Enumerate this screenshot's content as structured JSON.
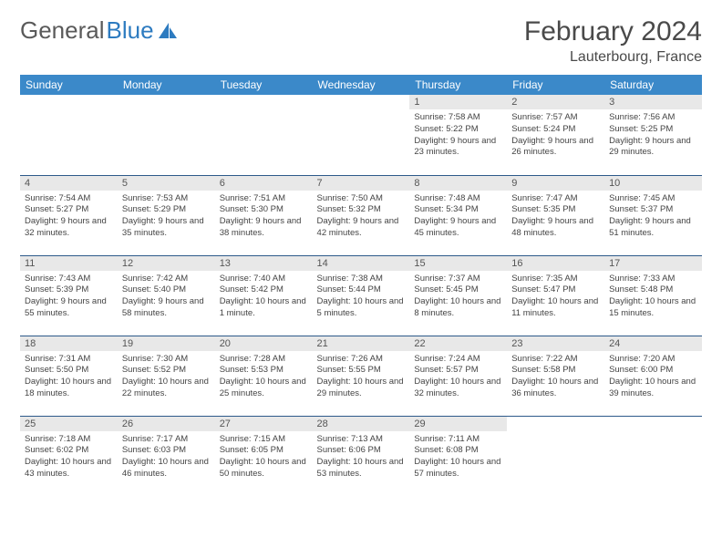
{
  "logo": {
    "part1": "General",
    "part2": "Blue"
  },
  "title": "February 2024",
  "location": "Lauterbourg, France",
  "colors": {
    "header_bg": "#3b89c9",
    "header_text": "#ffffff",
    "daynum_bg": "#e8e8e8",
    "row_border": "#2d5a8a",
    "logo_blue": "#2d7bc0",
    "text_gray": "#4a4a4a"
  },
  "day_headers": [
    "Sunday",
    "Monday",
    "Tuesday",
    "Wednesday",
    "Thursday",
    "Friday",
    "Saturday"
  ],
  "weeks": [
    [
      {
        "n": "",
        "sr": "",
        "ss": "",
        "dl": ""
      },
      {
        "n": "",
        "sr": "",
        "ss": "",
        "dl": ""
      },
      {
        "n": "",
        "sr": "",
        "ss": "",
        "dl": ""
      },
      {
        "n": "",
        "sr": "",
        "ss": "",
        "dl": ""
      },
      {
        "n": "1",
        "sr": "Sunrise: 7:58 AM",
        "ss": "Sunset: 5:22 PM",
        "dl": "Daylight: 9 hours and 23 minutes."
      },
      {
        "n": "2",
        "sr": "Sunrise: 7:57 AM",
        "ss": "Sunset: 5:24 PM",
        "dl": "Daylight: 9 hours and 26 minutes."
      },
      {
        "n": "3",
        "sr": "Sunrise: 7:56 AM",
        "ss": "Sunset: 5:25 PM",
        "dl": "Daylight: 9 hours and 29 minutes."
      }
    ],
    [
      {
        "n": "4",
        "sr": "Sunrise: 7:54 AM",
        "ss": "Sunset: 5:27 PM",
        "dl": "Daylight: 9 hours and 32 minutes."
      },
      {
        "n": "5",
        "sr": "Sunrise: 7:53 AM",
        "ss": "Sunset: 5:29 PM",
        "dl": "Daylight: 9 hours and 35 minutes."
      },
      {
        "n": "6",
        "sr": "Sunrise: 7:51 AM",
        "ss": "Sunset: 5:30 PM",
        "dl": "Daylight: 9 hours and 38 minutes."
      },
      {
        "n": "7",
        "sr": "Sunrise: 7:50 AM",
        "ss": "Sunset: 5:32 PM",
        "dl": "Daylight: 9 hours and 42 minutes."
      },
      {
        "n": "8",
        "sr": "Sunrise: 7:48 AM",
        "ss": "Sunset: 5:34 PM",
        "dl": "Daylight: 9 hours and 45 minutes."
      },
      {
        "n": "9",
        "sr": "Sunrise: 7:47 AM",
        "ss": "Sunset: 5:35 PM",
        "dl": "Daylight: 9 hours and 48 minutes."
      },
      {
        "n": "10",
        "sr": "Sunrise: 7:45 AM",
        "ss": "Sunset: 5:37 PM",
        "dl": "Daylight: 9 hours and 51 minutes."
      }
    ],
    [
      {
        "n": "11",
        "sr": "Sunrise: 7:43 AM",
        "ss": "Sunset: 5:39 PM",
        "dl": "Daylight: 9 hours and 55 minutes."
      },
      {
        "n": "12",
        "sr": "Sunrise: 7:42 AM",
        "ss": "Sunset: 5:40 PM",
        "dl": "Daylight: 9 hours and 58 minutes."
      },
      {
        "n": "13",
        "sr": "Sunrise: 7:40 AM",
        "ss": "Sunset: 5:42 PM",
        "dl": "Daylight: 10 hours and 1 minute."
      },
      {
        "n": "14",
        "sr": "Sunrise: 7:38 AM",
        "ss": "Sunset: 5:44 PM",
        "dl": "Daylight: 10 hours and 5 minutes."
      },
      {
        "n": "15",
        "sr": "Sunrise: 7:37 AM",
        "ss": "Sunset: 5:45 PM",
        "dl": "Daylight: 10 hours and 8 minutes."
      },
      {
        "n": "16",
        "sr": "Sunrise: 7:35 AM",
        "ss": "Sunset: 5:47 PM",
        "dl": "Daylight: 10 hours and 11 minutes."
      },
      {
        "n": "17",
        "sr": "Sunrise: 7:33 AM",
        "ss": "Sunset: 5:48 PM",
        "dl": "Daylight: 10 hours and 15 minutes."
      }
    ],
    [
      {
        "n": "18",
        "sr": "Sunrise: 7:31 AM",
        "ss": "Sunset: 5:50 PM",
        "dl": "Daylight: 10 hours and 18 minutes."
      },
      {
        "n": "19",
        "sr": "Sunrise: 7:30 AM",
        "ss": "Sunset: 5:52 PM",
        "dl": "Daylight: 10 hours and 22 minutes."
      },
      {
        "n": "20",
        "sr": "Sunrise: 7:28 AM",
        "ss": "Sunset: 5:53 PM",
        "dl": "Daylight: 10 hours and 25 minutes."
      },
      {
        "n": "21",
        "sr": "Sunrise: 7:26 AM",
        "ss": "Sunset: 5:55 PM",
        "dl": "Daylight: 10 hours and 29 minutes."
      },
      {
        "n": "22",
        "sr": "Sunrise: 7:24 AM",
        "ss": "Sunset: 5:57 PM",
        "dl": "Daylight: 10 hours and 32 minutes."
      },
      {
        "n": "23",
        "sr": "Sunrise: 7:22 AM",
        "ss": "Sunset: 5:58 PM",
        "dl": "Daylight: 10 hours and 36 minutes."
      },
      {
        "n": "24",
        "sr": "Sunrise: 7:20 AM",
        "ss": "Sunset: 6:00 PM",
        "dl": "Daylight: 10 hours and 39 minutes."
      }
    ],
    [
      {
        "n": "25",
        "sr": "Sunrise: 7:18 AM",
        "ss": "Sunset: 6:02 PM",
        "dl": "Daylight: 10 hours and 43 minutes."
      },
      {
        "n": "26",
        "sr": "Sunrise: 7:17 AM",
        "ss": "Sunset: 6:03 PM",
        "dl": "Daylight: 10 hours and 46 minutes."
      },
      {
        "n": "27",
        "sr": "Sunrise: 7:15 AM",
        "ss": "Sunset: 6:05 PM",
        "dl": "Daylight: 10 hours and 50 minutes."
      },
      {
        "n": "28",
        "sr": "Sunrise: 7:13 AM",
        "ss": "Sunset: 6:06 PM",
        "dl": "Daylight: 10 hours and 53 minutes."
      },
      {
        "n": "29",
        "sr": "Sunrise: 7:11 AM",
        "ss": "Sunset: 6:08 PM",
        "dl": "Daylight: 10 hours and 57 minutes."
      },
      {
        "n": "",
        "sr": "",
        "ss": "",
        "dl": ""
      },
      {
        "n": "",
        "sr": "",
        "ss": "",
        "dl": ""
      }
    ]
  ]
}
